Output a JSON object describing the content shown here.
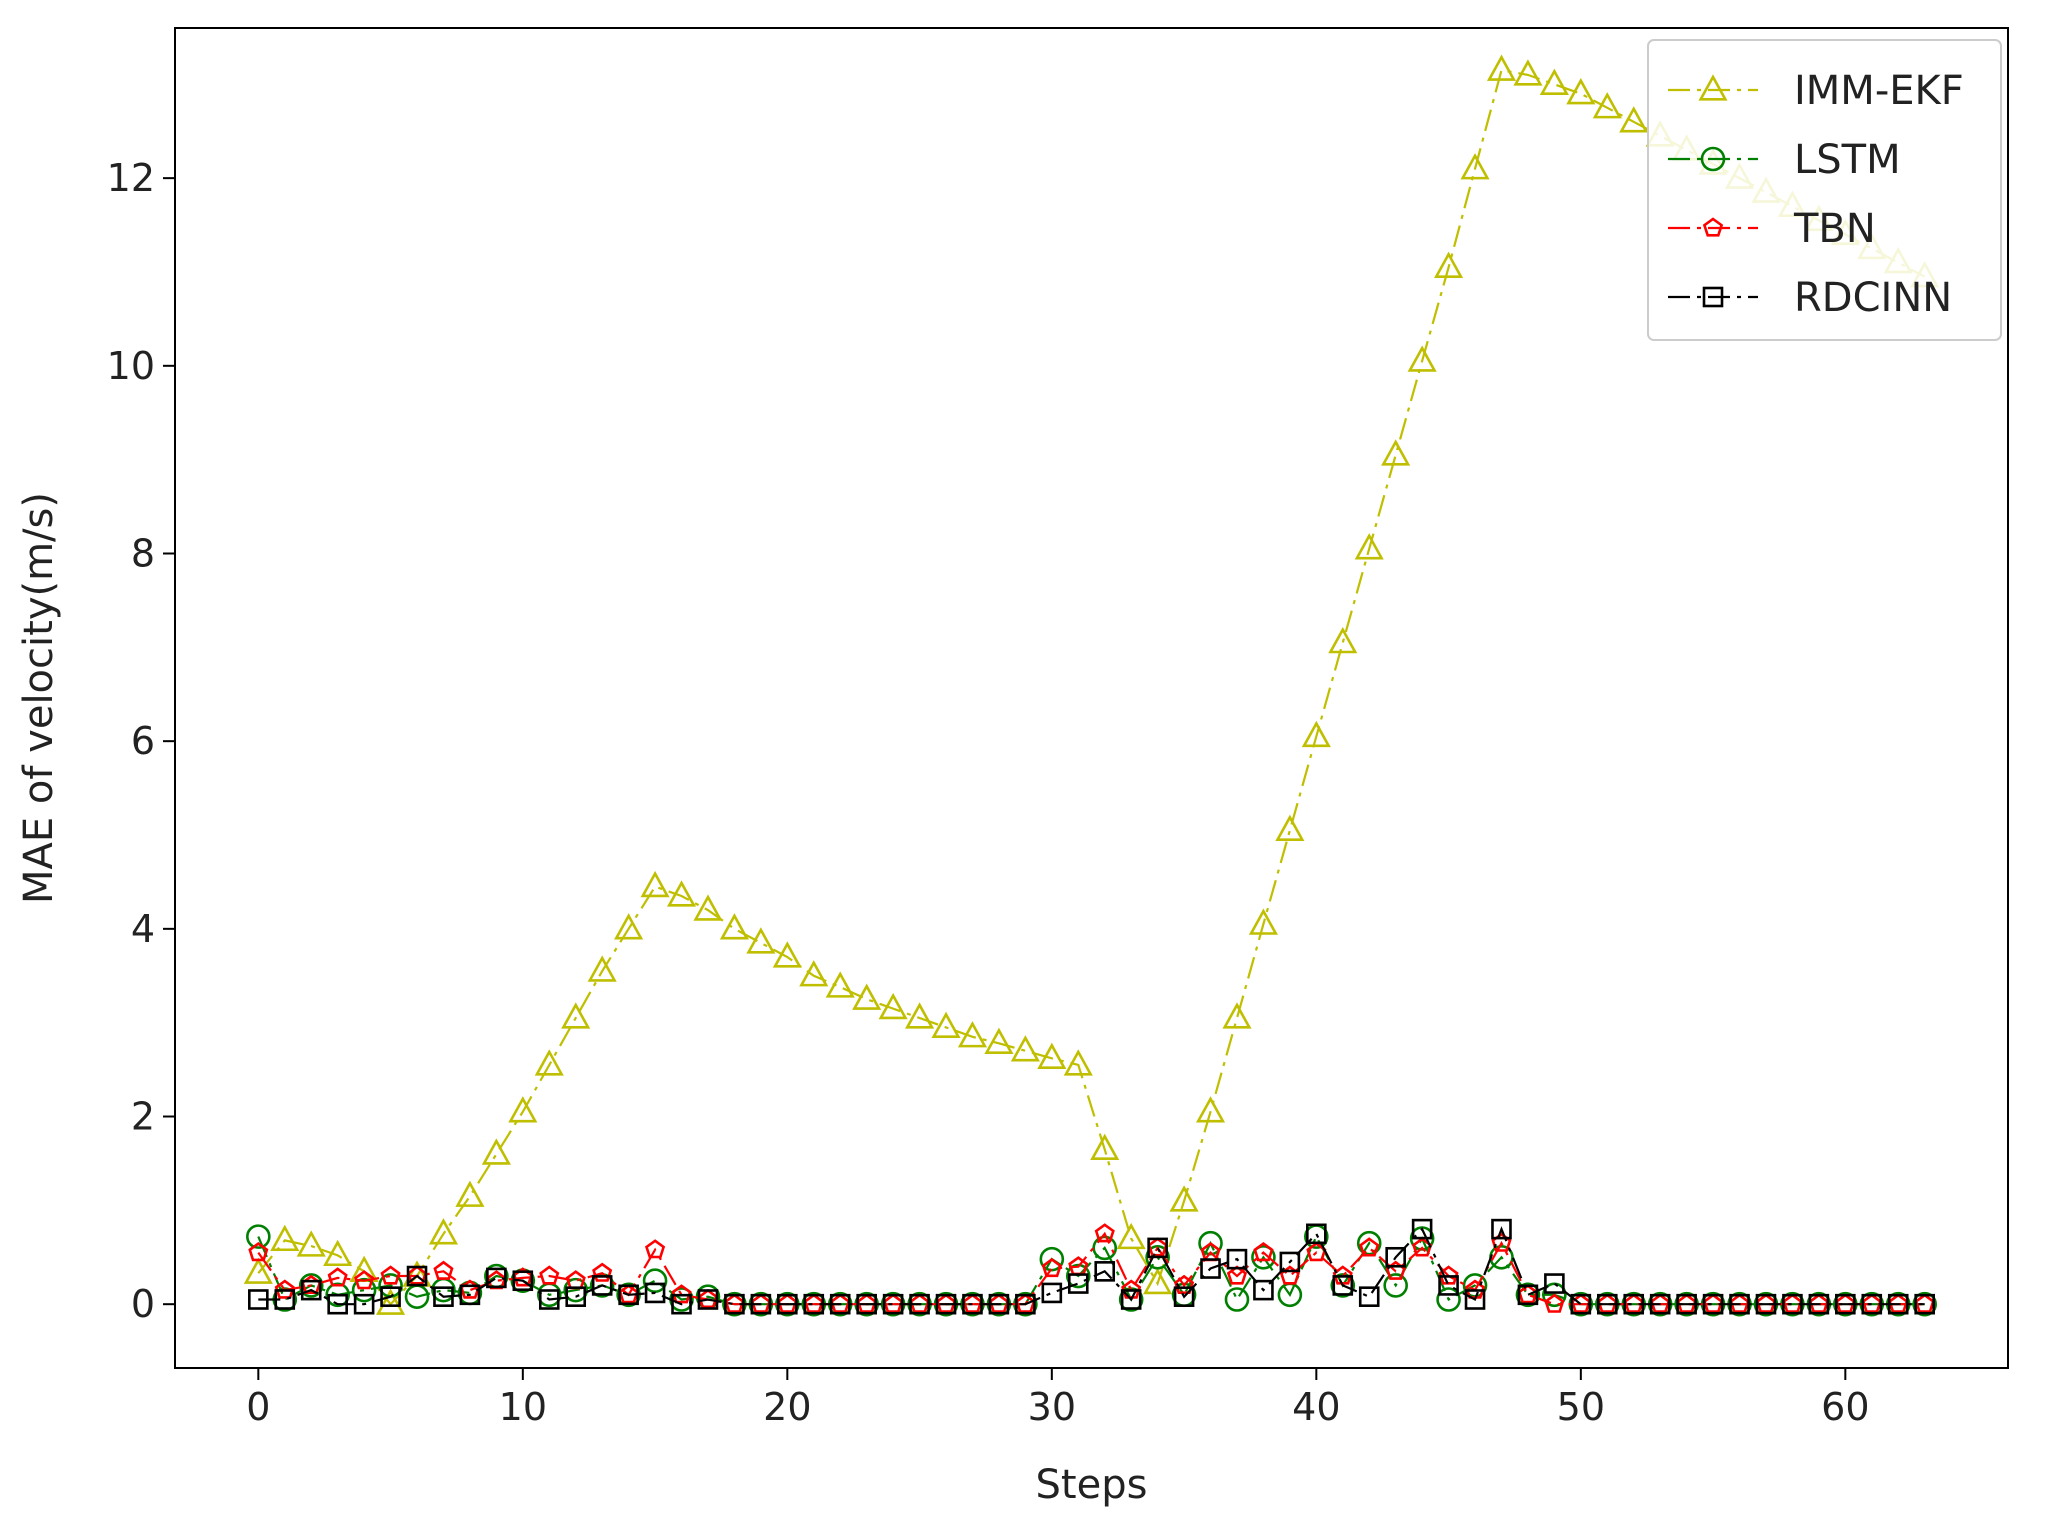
{
  "chart_data": {
    "type": "line",
    "title": "",
    "xlabel": "Steps",
    "ylabel": "MAE of velocity(m/s)",
    "xlim": [
      -3.15,
      66.15
    ],
    "ylim": [
      -0.68,
      13.6
    ],
    "xticks": [
      0,
      10,
      20,
      30,
      40,
      50,
      60
    ],
    "yticks": [
      0,
      2,
      4,
      6,
      8,
      10,
      12
    ],
    "grid": false,
    "legend_position": "top-right",
    "series": [
      {
        "name": "IMM-EKF",
        "color": "#bfbf00",
        "marker": "triangle",
        "line_style": "dashdot",
        "values": [
          0.33,
          0.68,
          0.62,
          0.52,
          0.35,
          0.0,
          0.3,
          0.75,
          1.15,
          1.6,
          2.05,
          2.55,
          3.05,
          3.55,
          4.0,
          4.45,
          4.35,
          4.2,
          4.0,
          3.85,
          3.7,
          3.5,
          3.38,
          3.25,
          3.15,
          3.05,
          2.95,
          2.85,
          2.78,
          2.7,
          2.62,
          2.55,
          1.65,
          0.7,
          0.22,
          1.1,
          2.05,
          3.05,
          4.05,
          5.05,
          6.05,
          7.05,
          8.05,
          9.05,
          10.05,
          11.05,
          12.1,
          13.15,
          13.1,
          13.0,
          12.9,
          12.75,
          12.6,
          12.45,
          12.3,
          12.15,
          12.0,
          11.85,
          11.7,
          11.55,
          11.4,
          11.25,
          11.1,
          10.95
        ]
      },
      {
        "name": "LSTM",
        "color": "#008000",
        "marker": "circle",
        "line_style": "dashdot",
        "values": [
          0.72,
          0.05,
          0.2,
          0.1,
          0.15,
          0.2,
          0.08,
          0.15,
          0.12,
          0.3,
          0.25,
          0.1,
          0.15,
          0.2,
          0.1,
          0.25,
          0.05,
          0.08,
          0.0,
          0.0,
          0.0,
          0.0,
          0.0,
          0.0,
          0.0,
          0.0,
          0.0,
          0.0,
          0.0,
          0.0,
          0.48,
          0.3,
          0.6,
          0.05,
          0.5,
          0.1,
          0.65,
          0.05,
          0.5,
          0.1,
          0.72,
          0.2,
          0.65,
          0.2,
          0.7,
          0.05,
          0.2,
          0.5,
          0.1,
          0.1,
          0.0,
          0.0,
          0.0,
          0.0,
          0.0,
          0.0,
          0.0,
          0.0,
          0.0,
          0.0,
          0.0,
          0.0,
          0.0,
          0.0
        ]
      },
      {
        "name": "TBN",
        "color": "#ff0000",
        "marker": "pentagon",
        "line_style": "dashdot",
        "values": [
          0.55,
          0.15,
          0.2,
          0.28,
          0.25,
          0.3,
          0.3,
          0.35,
          0.15,
          0.25,
          0.28,
          0.3,
          0.25,
          0.33,
          0.1,
          0.58,
          0.1,
          0.05,
          0.0,
          0.0,
          0.0,
          0.0,
          0.0,
          0.0,
          0.0,
          0.0,
          0.0,
          0.0,
          0.0,
          0.0,
          0.38,
          0.4,
          0.75,
          0.15,
          0.6,
          0.2,
          0.55,
          0.3,
          0.55,
          0.3,
          0.55,
          0.3,
          0.6,
          0.35,
          0.6,
          0.3,
          0.15,
          0.65,
          0.1,
          0.0,
          0.0,
          0.0,
          0.0,
          0.0,
          0.0,
          0.0,
          0.0,
          0.0,
          0.0,
          0.0,
          0.0,
          0.0,
          0.0,
          0.0
        ]
      },
      {
        "name": "RDCINN",
        "color": "#000000",
        "marker": "square",
        "line_style": "dashdot",
        "values": [
          0.05,
          0.05,
          0.15,
          0.0,
          0.0,
          0.08,
          0.3,
          0.08,
          0.1,
          0.28,
          0.25,
          0.05,
          0.08,
          0.2,
          0.1,
          0.12,
          0.0,
          0.05,
          0.0,
          0.0,
          0.0,
          0.0,
          0.0,
          0.0,
          0.0,
          0.0,
          0.0,
          0.0,
          0.0,
          0.0,
          0.12,
          0.22,
          0.35,
          0.05,
          0.6,
          0.08,
          0.38,
          0.48,
          0.15,
          0.45,
          0.75,
          0.2,
          0.08,
          0.5,
          0.8,
          0.2,
          0.05,
          0.8,
          0.1,
          0.22,
          0.0,
          0.0,
          0.0,
          0.0,
          0.0,
          0.0,
          0.0,
          0.0,
          0.0,
          0.0,
          0.0,
          0.0,
          0.0,
          0.0
        ]
      }
    ]
  }
}
